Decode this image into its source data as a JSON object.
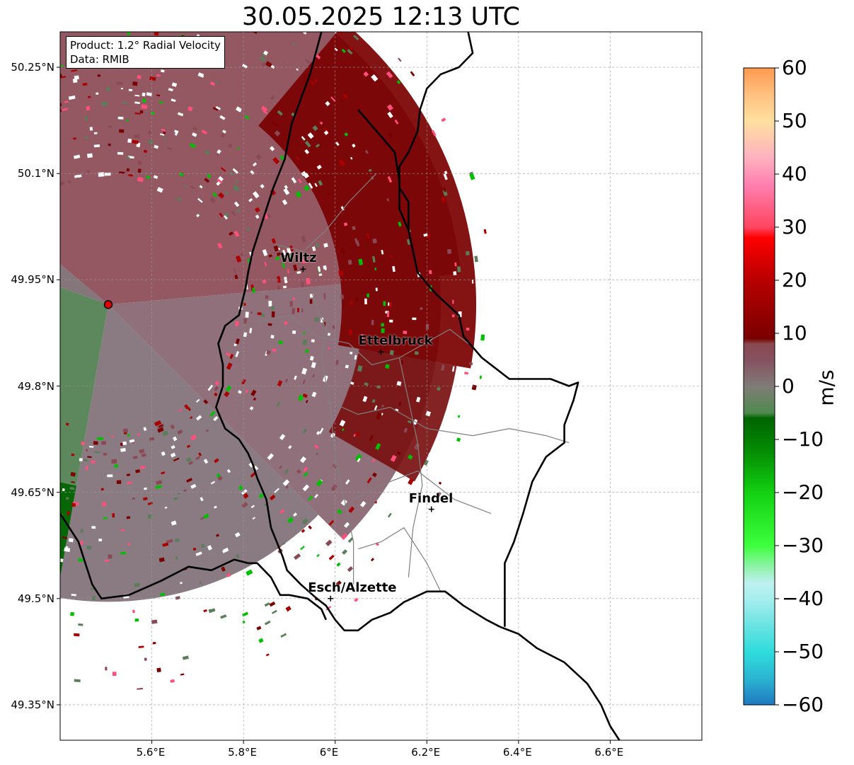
{
  "title": "30.05.2025 12:13 UTC",
  "info": {
    "product": "Product: 1.2° Radial Velocity",
    "data_source": "Data: RMIB"
  },
  "extent": {
    "lon": [
      5.4,
      6.8
    ],
    "lat": [
      49.3,
      50.3
    ]
  },
  "lat_ticks": [
    {
      "value": 50.25,
      "label": "50.25°N"
    },
    {
      "value": 50.1,
      "label": "50.1°N"
    },
    {
      "value": 49.95,
      "label": "49.95°N"
    },
    {
      "value": 49.8,
      "label": "49.8°N"
    },
    {
      "value": 49.65,
      "label": "49.65°N"
    },
    {
      "value": 49.5,
      "label": "49.5°N"
    },
    {
      "value": 49.35,
      "label": "49.35°N"
    }
  ],
  "lon_ticks": [
    {
      "value": 5.6,
      "label": "5.6°E"
    },
    {
      "value": 5.8,
      "label": "5.8°E"
    },
    {
      "value": 6.0,
      "label": "6°E"
    },
    {
      "value": 6.2,
      "label": "6.2°E"
    },
    {
      "value": 6.4,
      "label": "6.4°E"
    },
    {
      "value": 6.6,
      "label": "6.6°E"
    }
  ],
  "radar_site": {
    "lon": 5.505,
    "lat": 49.915
  },
  "cities": [
    {
      "name": "Wiltz",
      "lon": 5.93,
      "lat": 49.965
    },
    {
      "name": "Ettelbruck",
      "lon": 6.1,
      "lat": 49.848
    },
    {
      "name": "Findel",
      "lon": 6.21,
      "lat": 49.626
    },
    {
      "name": "Esch/Alzette",
      "lon": 5.99,
      "lat": 49.5
    }
  ],
  "colorbar": {
    "unit": "m/s",
    "min": -60,
    "max": 60,
    "ticks": [
      {
        "value": 60,
        "label": "60"
      },
      {
        "value": 50,
        "label": "50"
      },
      {
        "value": 40,
        "label": "40"
      },
      {
        "value": 30,
        "label": "30"
      },
      {
        "value": 20,
        "label": "20"
      },
      {
        "value": 10,
        "label": "10"
      },
      {
        "value": 0,
        "label": "0"
      },
      {
        "value": -10,
        "label": "−10"
      },
      {
        "value": -20,
        "label": "−20"
      },
      {
        "value": -30,
        "label": "−30"
      },
      {
        "value": -40,
        "label": "−40"
      },
      {
        "value": -50,
        "label": "−50"
      },
      {
        "value": -60,
        "label": "−60"
      }
    ],
    "stops": [
      {
        "value": -60,
        "color": "#1f78c0"
      },
      {
        "value": -55,
        "color": "#2bb5d2"
      },
      {
        "value": -50,
        "color": "#2fdcdc"
      },
      {
        "value": -45,
        "color": "#6be3e3"
      },
      {
        "value": -40,
        "color": "#a8eeee"
      },
      {
        "value": -37,
        "color": "#bff0f0"
      },
      {
        "value": -34,
        "color": "#8ef3a8"
      },
      {
        "value": -30,
        "color": "#3dff3d"
      },
      {
        "value": -20,
        "color": "#12d012"
      },
      {
        "value": -12,
        "color": "#048a04"
      },
      {
        "value": -6,
        "color": "#006400"
      },
      {
        "value": -5,
        "color": "#4f8a4f"
      },
      {
        "value": 0,
        "color": "#807c78"
      },
      {
        "value": 5,
        "color": "#865060"
      },
      {
        "value": 8,
        "color": "#8a4a50"
      },
      {
        "value": 9,
        "color": "#7a0000"
      },
      {
        "value": 20,
        "color": "#b80000"
      },
      {
        "value": 28,
        "color": "#ff0000"
      },
      {
        "value": 30,
        "color": "#ff4560"
      },
      {
        "value": 38,
        "color": "#ff80b0"
      },
      {
        "value": 43,
        "color": "#ffb0c0"
      },
      {
        "value": 50,
        "color": "#ffe0a0"
      },
      {
        "value": 55,
        "color": "#ffc080"
      },
      {
        "value": 60,
        "color": "#ff9a50"
      }
    ]
  },
  "colors": {
    "approaching": "#4f7d4f",
    "approaching_strong": "#006400",
    "neutral": "#807078",
    "receding": "#8a4a55",
    "receding_strong": "#7a0000",
    "border_national": "#000000",
    "border_district": "#808080",
    "radar_marker": "#e00000"
  },
  "borders": {
    "national_west": [
      [
        5.97,
        50.3
      ],
      [
        5.945,
        50.24
      ],
      [
        5.905,
        50.17
      ],
      [
        5.89,
        50.12
      ],
      [
        5.865,
        50.08
      ],
      [
        5.855,
        50.06
      ],
      [
        5.84,
        50.03
      ],
      [
        5.82,
        49.99
      ],
      [
        5.81,
        49.96
      ],
      [
        5.805,
        49.94
      ],
      [
        5.79,
        49.9
      ],
      [
        5.76,
        49.885
      ],
      [
        5.745,
        49.86
      ],
      [
        5.755,
        49.83
      ],
      [
        5.755,
        49.8
      ],
      [
        5.74,
        49.77
      ],
      [
        5.76,
        49.74
      ],
      [
        5.79,
        49.725
      ],
      [
        5.81,
        49.705
      ],
      [
        5.82,
        49.69
      ],
      [
        5.83,
        49.67
      ],
      [
        5.85,
        49.64
      ],
      [
        5.86,
        49.6
      ],
      [
        5.885,
        49.56
      ],
      [
        5.895,
        49.54
      ],
      [
        5.925,
        49.52
      ],
      [
        5.96,
        49.5
      ],
      [
        5.98,
        49.49
      ],
      [
        6.0,
        49.47
      ],
      [
        6.02,
        49.455
      ],
      [
        6.05,
        49.455
      ],
      [
        6.08,
        49.47
      ],
      [
        6.12,
        49.48
      ],
      [
        6.15,
        49.495
      ],
      [
        6.2,
        49.51
      ],
      [
        6.24,
        49.51
      ],
      [
        6.25,
        49.505
      ],
      [
        6.28,
        49.49
      ],
      [
        6.33,
        49.47
      ],
      [
        6.36,
        49.46
      ]
    ],
    "national_east": [
      [
        6.05,
        50.19
      ],
      [
        6.09,
        50.16
      ],
      [
        6.13,
        50.13
      ],
      [
        6.14,
        50.09
      ],
      [
        6.14,
        50.05
      ],
      [
        6.16,
        50.02
      ],
      [
        6.18,
        49.96
      ],
      [
        6.22,
        49.93
      ],
      [
        6.27,
        49.9
      ],
      [
        6.28,
        49.87
      ],
      [
        6.32,
        49.84
      ],
      [
        6.38,
        49.81
      ],
      [
        6.47,
        49.81
      ],
      [
        6.51,
        49.8
      ],
      [
        6.53,
        49.805
      ],
      [
        6.52,
        49.78
      ],
      [
        6.5,
        49.745
      ],
      [
        6.5,
        49.72
      ],
      [
        6.46,
        49.7
      ],
      [
        6.43,
        49.665
      ],
      [
        6.41,
        49.62
      ],
      [
        6.39,
        49.58
      ],
      [
        6.37,
        49.55
      ],
      [
        6.37,
        49.46
      ]
    ],
    "national_south": [
      [
        5.4,
        49.62
      ],
      [
        5.44,
        49.58
      ],
      [
        5.47,
        49.52
      ],
      [
        5.49,
        49.5
      ],
      [
        5.55,
        49.505
      ],
      [
        5.62,
        49.525
      ],
      [
        5.68,
        49.545
      ],
      [
        5.73,
        49.54
      ],
      [
        5.78,
        49.555
      ],
      [
        5.81,
        49.55
      ],
      [
        5.83,
        49.55
      ],
      [
        5.86,
        49.53
      ],
      [
        5.88,
        49.505
      ],
      [
        5.9,
        49.505
      ],
      [
        5.94,
        49.5
      ],
      [
        5.97,
        49.485
      ],
      [
        5.98,
        49.47
      ]
    ],
    "eastern_river": [
      [
        6.29,
        50.3
      ],
      [
        6.3,
        50.27
      ],
      [
        6.27,
        50.25
      ],
      [
        6.23,
        50.24
      ],
      [
        6.2,
        50.22
      ],
      [
        6.185,
        50.19
      ],
      [
        6.18,
        50.16
      ],
      [
        6.16,
        50.13
      ],
      [
        6.14,
        50.11
      ],
      [
        6.14,
        50.08
      ],
      [
        6.16,
        50.06
      ],
      [
        6.16,
        50.02
      ]
    ],
    "southeast_extension": [
      [
        6.36,
        49.46
      ],
      [
        6.4,
        49.45
      ],
      [
        6.44,
        49.43
      ],
      [
        6.5,
        49.41
      ],
      [
        6.55,
        49.38
      ],
      [
        6.58,
        49.35
      ],
      [
        6.6,
        49.32
      ],
      [
        6.62,
        49.3
      ]
    ],
    "districts": [
      [
        [
          5.87,
          50.0
        ],
        [
          5.93,
          49.99
        ],
        [
          5.98,
          50.02
        ],
        [
          6.03,
          50.06
        ],
        [
          6.09,
          50.1
        ]
      ],
      [
        [
          5.83,
          49.89
        ],
        [
          5.9,
          49.9
        ],
        [
          5.96,
          49.87
        ],
        [
          6.03,
          49.86
        ],
        [
          6.08,
          49.83
        ],
        [
          6.14,
          49.84
        ],
        [
          6.25,
          49.88
        ],
        [
          6.29,
          49.86
        ]
      ],
      [
        [
          5.98,
          49.78
        ],
        [
          6.05,
          49.76
        ],
        [
          6.12,
          49.77
        ],
        [
          6.2,
          49.74
        ],
        [
          6.3,
          49.73
        ],
        [
          6.38,
          49.74
        ],
        [
          6.46,
          49.73
        ],
        [
          6.51,
          49.72
        ]
      ],
      [
        [
          6.04,
          49.64
        ],
        [
          6.1,
          49.66
        ],
        [
          6.18,
          49.68
        ],
        [
          6.26,
          49.64
        ],
        [
          6.34,
          49.62
        ]
      ],
      [
        [
          6.05,
          49.57
        ],
        [
          6.1,
          49.58
        ],
        [
          6.15,
          49.6
        ],
        [
          6.2,
          49.55
        ],
        [
          6.23,
          49.51
        ]
      ],
      [
        [
          5.95,
          49.93
        ],
        [
          5.98,
          49.88
        ],
        [
          5.97,
          49.84
        ],
        [
          5.99,
          49.77
        ],
        [
          6.0,
          49.7
        ],
        [
          6.02,
          49.64
        ],
        [
          6.04,
          49.58
        ],
        [
          6.04,
          49.52
        ]
      ],
      [
        [
          6.14,
          49.84
        ],
        [
          6.16,
          49.78
        ],
        [
          6.18,
          49.72
        ],
        [
          6.19,
          49.66
        ],
        [
          6.17,
          49.6
        ],
        [
          6.16,
          49.53
        ]
      ]
    ]
  }
}
